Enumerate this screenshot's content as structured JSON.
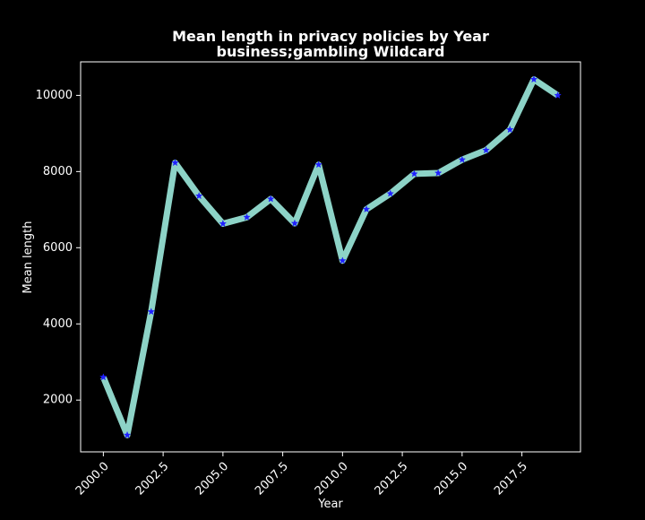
{
  "chart_data": {
    "type": "line",
    "title": "Mean length in privacy policies by Year",
    "subtitle": "business;gambling Wildcard",
    "xlabel": "Year",
    "ylabel": "Mean length",
    "x": [
      2000,
      2001,
      2002,
      2003,
      2004,
      2005,
      2006,
      2007,
      2008,
      2009,
      2010,
      2011,
      2012,
      2013,
      2014,
      2015,
      2016,
      2017,
      2018,
      2019
    ],
    "series": [
      {
        "values": [
          2600,
          1080,
          4320,
          8230,
          7360,
          6630,
          6800,
          7280,
          6640,
          8180,
          5660,
          7010,
          7420,
          7940,
          7960,
          8310,
          8560,
          9100,
          10420,
          10000
        ]
      }
    ],
    "xlim": [
      1999.05,
      2019.95
    ],
    "ylim": [
      640,
      10880
    ],
    "xticks": [
      2000,
      2002.5,
      2005,
      2007.5,
      2010,
      2012.5,
      2015,
      2017.5
    ],
    "xtick_labels": [
      "2000.0",
      "2002.5",
      "2005.0",
      "2007.5",
      "2010.0",
      "2012.5",
      "2015.0",
      "2017.5"
    ],
    "yticks": [
      2000,
      4000,
      6000,
      8000,
      10000
    ],
    "ytick_labels": [
      "2000",
      "4000",
      "6000",
      "8000",
      "10000"
    ],
    "grid": false,
    "line_color": "#8dd3c7",
    "marker_color": "#1f1fff",
    "background": "#000000",
    "axes_color": "#ffffff"
  }
}
